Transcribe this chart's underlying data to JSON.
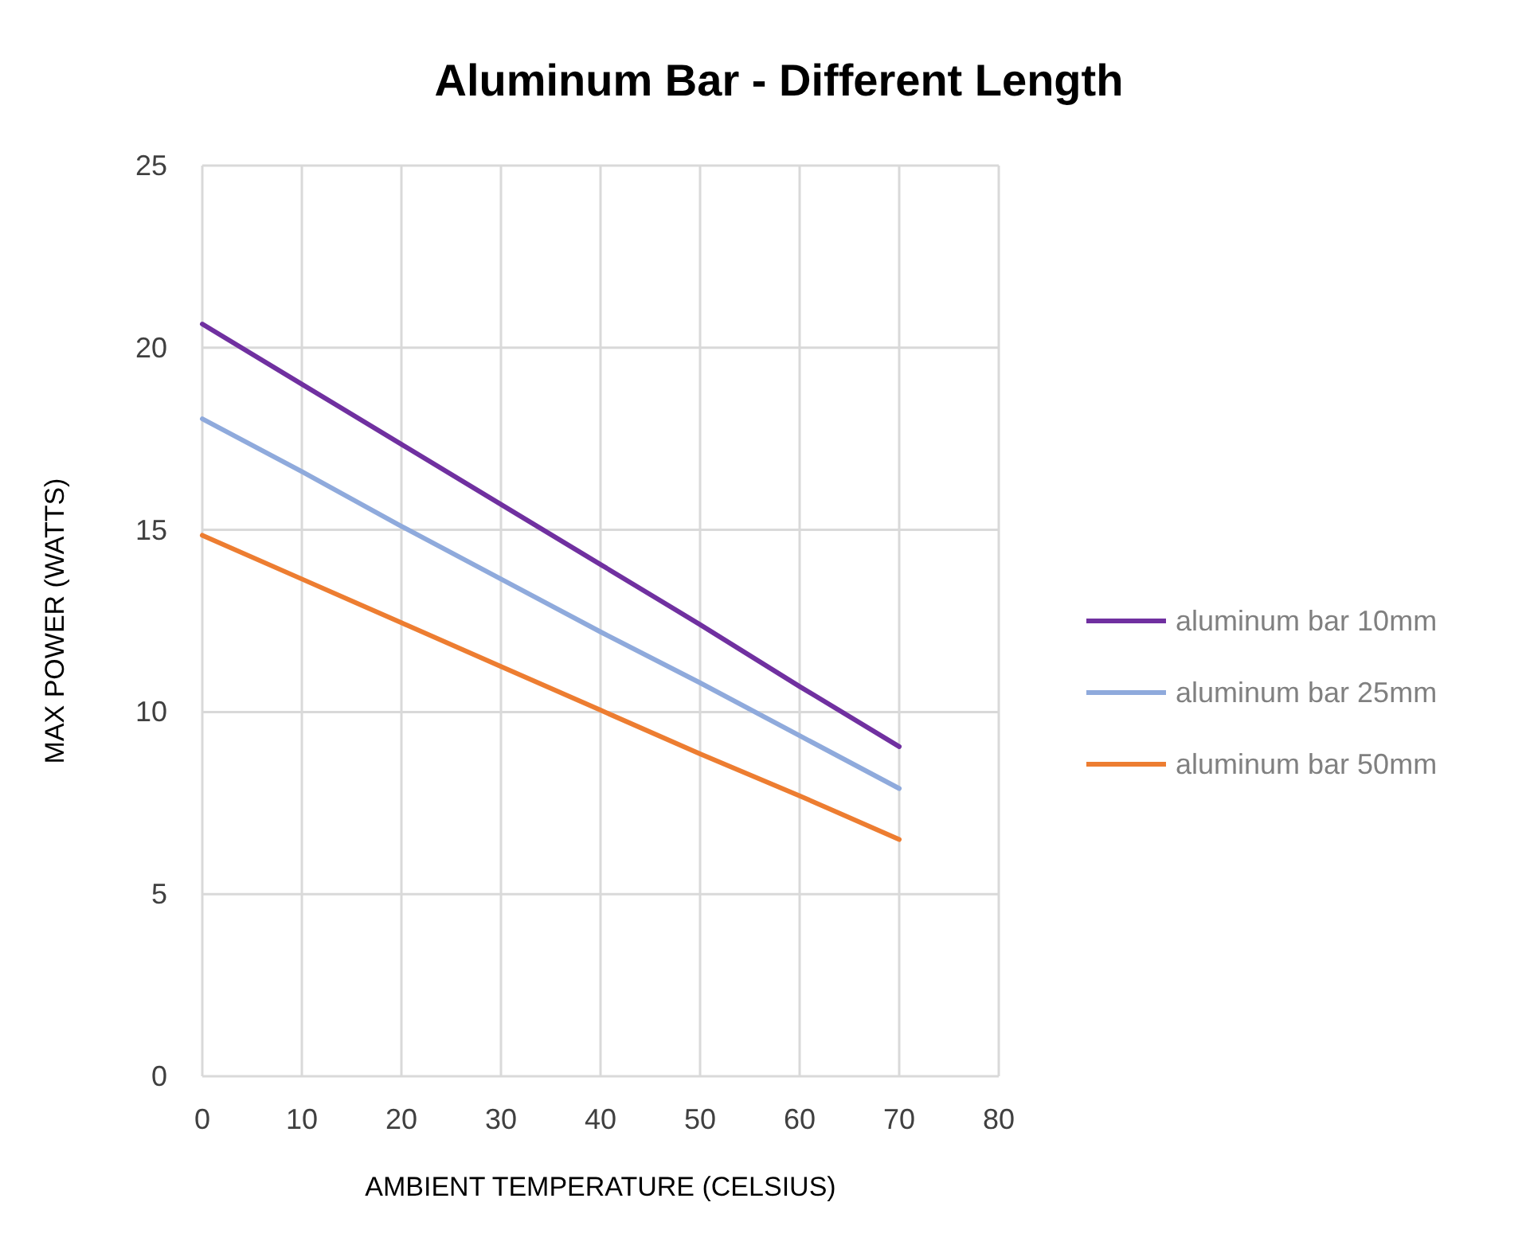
{
  "chart_data": {
    "type": "line",
    "title": "Aluminum Bar - Different Length",
    "xlabel": "AMBIENT TEMPERATURE (CELSIUS)",
    "ylabel": "MAX POWER (WATTS)",
    "x": [
      0,
      10,
      20,
      30,
      40,
      50,
      60,
      70
    ],
    "series": [
      {
        "name": "aluminum bar 10mm",
        "color": "#7030a0",
        "values": [
          20.65,
          19.0,
          17.35,
          15.7,
          14.05,
          12.4,
          10.7,
          9.05
        ]
      },
      {
        "name": "aluminum bar 25mm",
        "color": "#8faadc",
        "values": [
          18.05,
          16.6,
          15.1,
          13.65,
          12.2,
          10.8,
          9.35,
          7.9
        ]
      },
      {
        "name": "aluminum bar 50mm",
        "color": "#ed7d31",
        "values": [
          14.85,
          13.65,
          12.45,
          11.25,
          10.05,
          8.85,
          7.7,
          6.5
        ]
      }
    ],
    "xlim": [
      0,
      80
    ],
    "xticks": [
      0,
      10,
      20,
      30,
      40,
      50,
      60,
      70,
      80
    ],
    "ylim": [
      0,
      25
    ],
    "yticks": [
      0,
      5,
      10,
      15,
      20,
      25
    ],
    "grid": true,
    "legend": "right",
    "marker": "none",
    "line_style": "solid"
  }
}
